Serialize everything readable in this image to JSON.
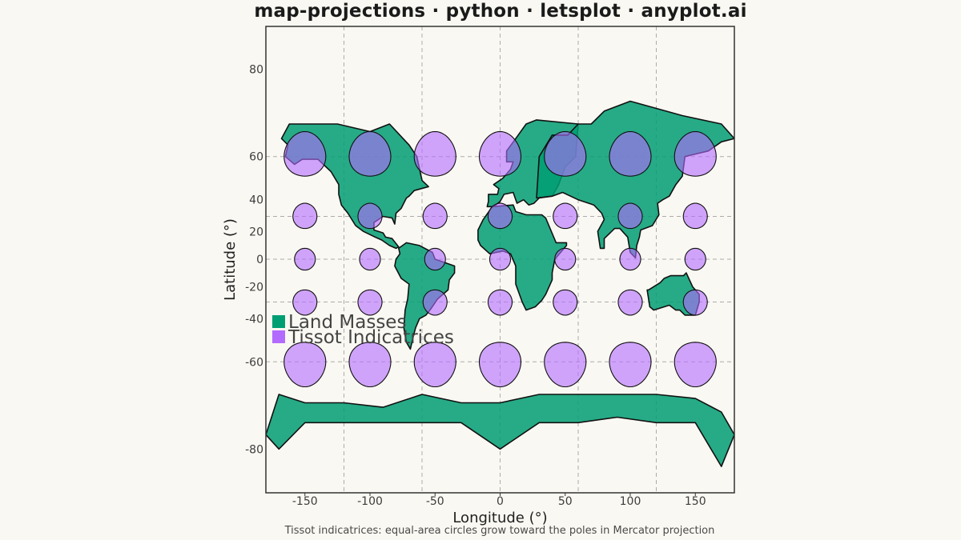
{
  "chart_data": {
    "type": "map",
    "title": "map-projections · python · letsplot · anyplot.ai",
    "caption": "Tissot indicatrices: equal-area circles grow toward the poles in Mercator projection",
    "xlabel": "Longitude (°)",
    "ylabel": "Latitude (°)",
    "projection": "mercator",
    "xlim": [
      -180,
      180
    ],
    "ylim": [
      -85,
      85
    ],
    "x_ticks": [
      -150,
      -100,
      -50,
      0,
      50,
      100,
      150
    ],
    "x_tick_labels": [
      "-150",
      "-100",
      "-50",
      "0",
      "50",
      "100",
      "150"
    ],
    "y_ticks": [
      80,
      60,
      40,
      20,
      0,
      -20,
      -40,
      -60,
      -80
    ],
    "y_tick_labels": [
      "80",
      "60",
      "40",
      "20",
      "0",
      "-20",
      "-40",
      "-60",
      "-80"
    ],
    "graticule_lon": [
      -120,
      -60,
      0,
      60,
      120
    ],
    "graticule_lat": [
      -60,
      -30,
      0,
      30,
      60
    ],
    "grid": true,
    "legend": {
      "placement": "left",
      "entries": [
        {
          "label": "Land Masses",
          "color": "#009E73"
        },
        {
          "label": "Tissot Indicatrices",
          "color": "#B36BFF"
        }
      ]
    },
    "land_color": "#009E73",
    "tissot_color": "#B36BFF",
    "tissot": {
      "lons": [
        -150,
        -100,
        -50,
        0,
        50,
        100,
        150
      ],
      "lats": [
        60,
        30,
        0,
        -30,
        -60
      ],
      "radius_deg": 8
    },
    "land_masses": [
      {
        "name": "North America",
        "coords": [
          [
            -168,
            66
          ],
          [
            -162,
            70
          ],
          [
            -140,
            70
          ],
          [
            -125,
            70
          ],
          [
            -100,
            68
          ],
          [
            -85,
            70
          ],
          [
            -70,
            64
          ],
          [
            -64,
            60
          ],
          [
            -60,
            50
          ],
          [
            -55,
            47
          ],
          [
            -66,
            45
          ],
          [
            -70,
            42
          ],
          [
            -72,
            41
          ],
          [
            -76,
            35
          ],
          [
            -80,
            32
          ],
          [
            -81,
            25
          ],
          [
            -83,
            29
          ],
          [
            -90,
            30
          ],
          [
            -97,
            26
          ],
          [
            -97,
            21
          ],
          [
            -90,
            19
          ],
          [
            -88,
            16
          ],
          [
            -83,
            15
          ],
          [
            -78,
            9
          ],
          [
            -80,
            8
          ],
          [
            -85,
            10
          ],
          [
            -91,
            14
          ],
          [
            -96,
            16
          ],
          [
            -105,
            20
          ],
          [
            -111,
            24
          ],
          [
            -117,
            32
          ],
          [
            -122,
            37
          ],
          [
            -124,
            43
          ],
          [
            -124,
            48
          ],
          [
            -130,
            54
          ],
          [
            -140,
            59
          ],
          [
            -152,
            59
          ],
          [
            -158,
            57
          ],
          [
            -165,
            60
          ],
          [
            -163,
            64
          ],
          [
            -168,
            66
          ]
        ]
      },
      {
        "name": "South America",
        "coords": [
          [
            -78,
            8
          ],
          [
            -72,
            12
          ],
          [
            -62,
            10
          ],
          [
            -52,
            5
          ],
          [
            -50,
            0
          ],
          [
            -35,
            -5
          ],
          [
            -35,
            -10
          ],
          [
            -39,
            -15
          ],
          [
            -40,
            -22
          ],
          [
            -48,
            -28
          ],
          [
            -53,
            -34
          ],
          [
            -57,
            -38
          ],
          [
            -62,
            -40
          ],
          [
            -65,
            -45
          ],
          [
            -67,
            -50
          ],
          [
            -69,
            -55
          ],
          [
            -72,
            -52
          ],
          [
            -74,
            -45
          ],
          [
            -73,
            -35
          ],
          [
            -71,
            -28
          ],
          [
            -70,
            -18
          ],
          [
            -76,
            -14
          ],
          [
            -81,
            -5
          ],
          [
            -80,
            0
          ],
          [
            -77,
            4
          ],
          [
            -78,
            8
          ]
        ]
      },
      {
        "name": "Europe",
        "coords": [
          [
            -10,
            36
          ],
          [
            -9,
            39
          ],
          [
            -9,
            43
          ],
          [
            -2,
            43
          ],
          [
            -1,
            46
          ],
          [
            -5,
            48
          ],
          [
            2,
            51
          ],
          [
            5,
            53
          ],
          [
            8,
            55
          ],
          [
            10,
            58
          ],
          [
            5,
            58
          ],
          [
            5,
            62
          ],
          [
            12,
            66
          ],
          [
            20,
            70
          ],
          [
            28,
            71
          ],
          [
            60,
            70
          ],
          [
            58,
            60
          ],
          [
            50,
            56
          ],
          [
            45,
            48
          ],
          [
            40,
            42
          ],
          [
            30,
            41
          ],
          [
            26,
            38
          ],
          [
            22,
            37
          ],
          [
            18,
            40
          ],
          [
            13,
            38
          ],
          [
            10,
            44
          ],
          [
            3,
            43
          ],
          [
            0,
            39
          ],
          [
            -5,
            36
          ],
          [
            -10,
            36
          ]
        ]
      },
      {
        "name": "Africa",
        "coords": [
          [
            -17,
            14
          ],
          [
            -17,
            21
          ],
          [
            -13,
            28
          ],
          [
            -6,
            36
          ],
          [
            10,
            37
          ],
          [
            12,
            33
          ],
          [
            20,
            31
          ],
          [
            32,
            31
          ],
          [
            35,
            29
          ],
          [
            43,
            12
          ],
          [
            51,
            12
          ],
          [
            51,
            10
          ],
          [
            42,
            0
          ],
          [
            40,
            -10
          ],
          [
            40,
            -15
          ],
          [
            35,
            -25
          ],
          [
            32,
            -29
          ],
          [
            27,
            -33
          ],
          [
            20,
            -35
          ],
          [
            17,
            -30
          ],
          [
            12,
            -18
          ],
          [
            12,
            -5
          ],
          [
            8,
            4
          ],
          [
            2,
            6
          ],
          [
            -8,
            4
          ],
          [
            -15,
            10
          ],
          [
            -17,
            14
          ]
        ]
      },
      {
        "name": "Asia",
        "coords": [
          [
            28,
            41
          ],
          [
            40,
            42
          ],
          [
            48,
            44
          ],
          [
            60,
            40
          ],
          [
            72,
            37
          ],
          [
            78,
            32
          ],
          [
            80,
            28
          ],
          [
            75,
            20
          ],
          [
            77,
            8
          ],
          [
            80,
            8
          ],
          [
            80,
            15
          ],
          [
            88,
            22
          ],
          [
            92,
            22
          ],
          [
            98,
            16
          ],
          [
            100,
            5
          ],
          [
            104,
            1
          ],
          [
            105,
            10
          ],
          [
            107,
            16
          ],
          [
            108,
            21
          ],
          [
            117,
            24
          ],
          [
            122,
            31
          ],
          [
            121,
            38
          ],
          [
            125,
            40
          ],
          [
            130,
            42
          ],
          [
            135,
            48
          ],
          [
            140,
            52
          ],
          [
            142,
            60
          ],
          [
            160,
            62
          ],
          [
            170,
            65
          ],
          [
            180,
            66
          ],
          [
            170,
            70
          ],
          [
            140,
            72
          ],
          [
            100,
            75
          ],
          [
            80,
            73
          ],
          [
            70,
            70
          ],
          [
            60,
            70
          ],
          [
            52,
            67
          ],
          [
            40,
            67
          ],
          [
            30,
            60
          ],
          [
            28,
            41
          ]
        ]
      },
      {
        "name": "Australia",
        "coords": [
          [
            113,
            -22
          ],
          [
            115,
            -33
          ],
          [
            118,
            -35
          ],
          [
            130,
            -32
          ],
          [
            135,
            -35
          ],
          [
            138,
            -35
          ],
          [
            142,
            -38
          ],
          [
            150,
            -38
          ],
          [
            153,
            -30
          ],
          [
            153,
            -25
          ],
          [
            148,
            -20
          ],
          [
            143,
            -10
          ],
          [
            141,
            -12
          ],
          [
            136,
            -12
          ],
          [
            131,
            -12
          ],
          [
            126,
            -14
          ],
          [
            123,
            -17
          ],
          [
            114,
            -22
          ],
          [
            113,
            -22
          ]
        ]
      },
      {
        "name": "Antarctica",
        "coords": [
          [
            -180,
            -78
          ],
          [
            -170,
            -70
          ],
          [
            -150,
            -72
          ],
          [
            -120,
            -72
          ],
          [
            -90,
            -73
          ],
          [
            -60,
            -70
          ],
          [
            -30,
            -72
          ],
          [
            0,
            -72
          ],
          [
            30,
            -70
          ],
          [
            60,
            -70
          ],
          [
            90,
            -70
          ],
          [
            120,
            -70
          ],
          [
            150,
            -71
          ],
          [
            170,
            -74
          ],
          [
            180,
            -78
          ],
          [
            170,
            -82
          ],
          [
            150,
            -76
          ],
          [
            120,
            -76
          ],
          [
            90,
            -75
          ],
          [
            60,
            -76
          ],
          [
            30,
            -76
          ],
          [
            0,
            -80
          ],
          [
            -30,
            -76
          ],
          [
            -60,
            -76
          ],
          [
            -90,
            -76
          ],
          [
            -120,
            -76
          ],
          [
            -150,
            -76
          ],
          [
            -170,
            -80
          ],
          [
            -180,
            -78
          ]
        ]
      }
    ]
  }
}
